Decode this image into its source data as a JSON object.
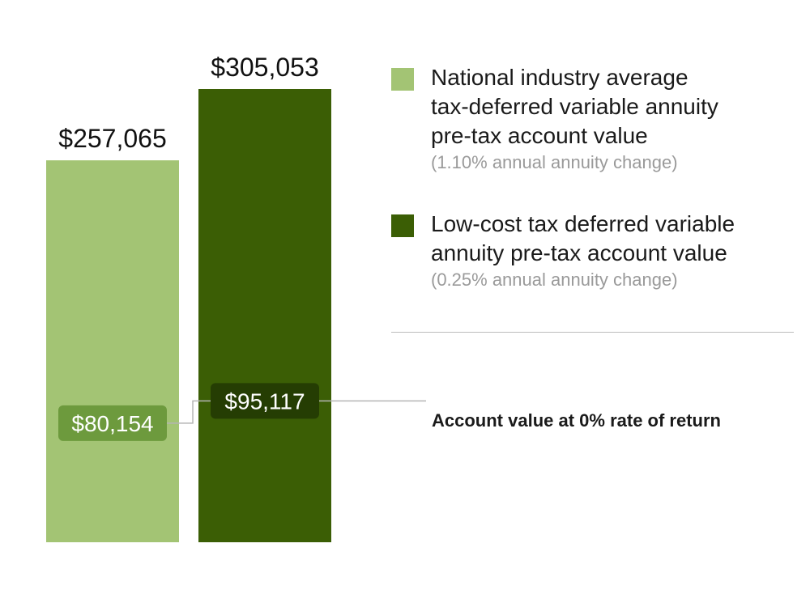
{
  "chart_data": {
    "type": "bar",
    "categories": [
      "National industry average tax-deferred variable annuity pre-tax account value",
      "Low-cost tax deferred variable annuity pre-tax account value"
    ],
    "series": [
      {
        "name": "Pre-tax account value",
        "values": [
          257065,
          305053
        ],
        "labels": [
          "$257,065",
          "$305,053"
        ]
      },
      {
        "name": "Account value at 0% rate of return",
        "values": [
          80154,
          95117
        ],
        "labels": [
          "$80,154",
          "$95,117"
        ]
      }
    ],
    "colors": [
      "#a3c474",
      "#3b5e05"
    ],
    "ylim": [
      0,
      305053
    ],
    "grid": false,
    "legend_position": "right"
  },
  "legend": [
    {
      "lines": [
        "National industry average",
        "tax-deferred variable annuity",
        "pre-tax account value"
      ],
      "note": "(1.10% annual annuity change)",
      "color": "#a3c474"
    },
    {
      "lines": [
        "Low-cost tax deferred variable",
        "annuity pre-tax account value"
      ],
      "note": "(0.25% annual annuity change)",
      "color": "#3b5e05"
    }
  ],
  "annotation": "Account value at 0% rate of return",
  "inner_label_colors": [
    "#6d9a3d",
    "#253d03"
  ],
  "connector_color": "#b5b5b5"
}
